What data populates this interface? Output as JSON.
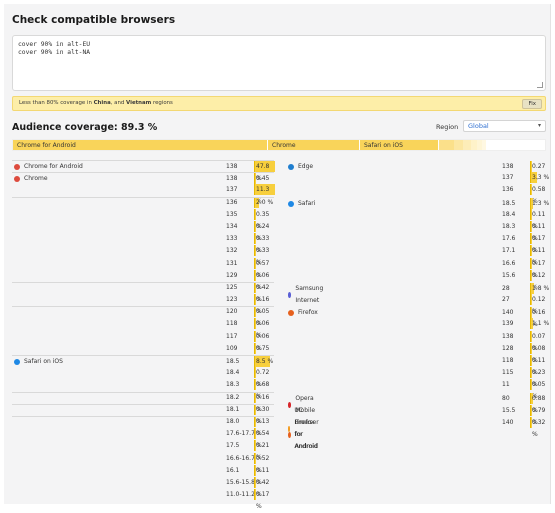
{
  "heading": "Check compatible browsers",
  "query": "cover 90% in alt-EU\ncover 90% in alt-NA",
  "warning": {
    "prefix": "Less than 80% coverage in ",
    "r1": "China",
    "mid": ", and ",
    "r2": "Vietnam",
    "suffix": " regions",
    "fix": "Fix"
  },
  "coverage_title": "Audience coverage: 89.3 %",
  "region": {
    "label": "Region",
    "value": "Global"
  },
  "bar_segments": [
    {
      "label": "Chrome for Android",
      "share": 47.8,
      "color": "#f9d45a"
    },
    {
      "label": "Chrome",
      "share": 16.7,
      "color": "#f9d45a"
    },
    {
      "label": "Safari on iOS",
      "share": 13.9,
      "color": "#f9d45a"
    },
    {
      "label": "",
      "share": 3.6,
      "color": "#fbe08a"
    },
    {
      "label": "",
      "share": 2.1,
      "color": "#fce7a3"
    },
    {
      "label": "",
      "share": 1.8,
      "color": "#fdedb8"
    },
    {
      "label": "",
      "share": 1.4,
      "color": "#fef2c9"
    },
    {
      "label": "",
      "share": 1.3,
      "color": "#fef5d6"
    },
    {
      "label": "",
      "share": 0.8,
      "color": "#fff8e2"
    }
  ],
  "left_rows": [
    {
      "browser": "Chrome for Android",
      "icon": "chrome",
      "version": "138",
      "pct": "47.8 %",
      "value": 47.8
    },
    {
      "browser": "Chrome",
      "icon": "chrome",
      "version": "138",
      "pct": "0.45 %",
      "value": 0.45
    },
    {
      "browser": "",
      "version": "137",
      "pct": "11.3 %",
      "value": 11.3
    },
    {
      "browser": "",
      "version": "136",
      "pct": "2.0 %",
      "value": 2.0
    },
    {
      "browser": "",
      "version": "135",
      "pct": "0.35 %",
      "value": 0.35
    },
    {
      "browser": "",
      "version": "134",
      "pct": "0.24 %",
      "value": 0.24
    },
    {
      "browser": "",
      "version": "133",
      "pct": "0.33 %",
      "value": 0.33
    },
    {
      "browser": "",
      "version": "132",
      "pct": "0.33 %",
      "value": 0.33
    },
    {
      "browser": "",
      "version": "131",
      "pct": "0.57 %",
      "value": 0.57
    },
    {
      "browser": "",
      "version": "129",
      "pct": "0.06 %",
      "value": 0.06
    },
    {
      "browser": "",
      "version": "125",
      "pct": "0.42 %",
      "value": 0.42
    },
    {
      "browser": "",
      "version": "123",
      "pct": "0.16 %",
      "value": 0.16
    },
    {
      "browser": "",
      "version": "120",
      "pct": "0.05 %",
      "value": 0.05
    },
    {
      "browser": "",
      "version": "118",
      "pct": "0.06 %",
      "value": 0.06
    },
    {
      "browser": "",
      "version": "117",
      "pct": "0.06 %",
      "value": 0.06
    },
    {
      "browser": "",
      "version": "109",
      "pct": "0.75 %",
      "value": 0.75
    },
    {
      "browser": "Safari on iOS",
      "icon": "safari",
      "version": "18.5",
      "pct": "8.5 %",
      "value": 8.5
    },
    {
      "browser": "",
      "version": "18.4",
      "pct": "0.72 %",
      "value": 0.72
    },
    {
      "browser": "",
      "version": "18.3",
      "pct": "0.68 %",
      "value": 0.68
    },
    {
      "browser": "",
      "version": "18.2",
      "pct": "0.16 %",
      "value": 0.16
    },
    {
      "browser": "",
      "version": "18.1",
      "pct": "0.30 %",
      "value": 0.3
    },
    {
      "browser": "",
      "version": "18.0",
      "pct": "0.13 %",
      "value": 0.13
    },
    {
      "browser": "",
      "version": "17.6-17.7",
      "pct": "0.54 %",
      "value": 0.54
    },
    {
      "browser": "",
      "version": "17.5",
      "pct": "0.21 %",
      "value": 0.21
    },
    {
      "browser": "",
      "version": "16.6-16.7",
      "pct": "0.52 %",
      "value": 0.52
    },
    {
      "browser": "",
      "version": "16.1",
      "pct": "0.11 %",
      "value": 0.11
    },
    {
      "browser": "",
      "version": "15.6-15.8",
      "pct": "0.42 %",
      "value": 0.42
    },
    {
      "browser": "",
      "version": "11.0-11.2",
      "pct": "0.17 %",
      "value": 0.17
    }
  ],
  "right_rows": [
    {
      "browser": "Edge",
      "icon": "edge",
      "version": "138",
      "pct": "0.27 %",
      "value": 0.27
    },
    {
      "browser": "",
      "version": "137",
      "pct": "3.3 %",
      "value": 3.3
    },
    {
      "browser": "",
      "version": "136",
      "pct": "0.58 %",
      "value": 0.58
    },
    {
      "browser": "Safari",
      "icon": "safari",
      "version": "18.5",
      "pct": "1.3 %",
      "value": 1.3
    },
    {
      "browser": "",
      "version": "18.4",
      "pct": "0.11 %",
      "value": 0.11
    },
    {
      "browser": "",
      "version": "18.3",
      "pct": "0.11 %",
      "value": 0.11
    },
    {
      "browser": "",
      "version": "17.6",
      "pct": "0.17 %",
      "value": 0.17
    },
    {
      "browser": "",
      "version": "17.1",
      "pct": "0.11 %",
      "value": 0.11
    },
    {
      "browser": "",
      "version": "16.6",
      "pct": "0.17 %",
      "value": 0.17
    },
    {
      "browser": "",
      "version": "15.6",
      "pct": "0.12 %",
      "value": 0.12
    },
    {
      "browser": "Samsung Internet",
      "icon": "samsung",
      "version": "28",
      "pct": "1.8 %",
      "value": 1.8
    },
    {
      "browser": "",
      "version": "27",
      "pct": "0.12 %",
      "value": 0.12
    },
    {
      "browser": "Firefox",
      "icon": "firefox",
      "version": "140",
      "pct": "0.16 %",
      "value": 0.16
    },
    {
      "browser": "",
      "version": "139",
      "pct": "1.1 %",
      "value": 1.1
    },
    {
      "browser": "",
      "version": "138",
      "pct": "0.07 %",
      "value": 0.07
    },
    {
      "browser": "",
      "version": "128",
      "pct": "0.08 %",
      "value": 0.08
    },
    {
      "browser": "",
      "version": "118",
      "pct": "0.11 %",
      "value": 0.11
    },
    {
      "browser": "",
      "version": "115",
      "pct": "0.23 %",
      "value": 0.23
    },
    {
      "browser": "",
      "version": "11",
      "pct": "0.05 %",
      "value": 0.05
    },
    {
      "browser": "Opera Mobile",
      "icon": "opera",
      "version": "80",
      "pct": "0.88 %",
      "value": 0.88
    },
    {
      "browser": "UC Browser for Android",
      "icon": "uc",
      "version": "15.5",
      "pct": "0.79 %",
      "value": 0.79
    },
    {
      "browser": "Firefox for Android",
      "icon": "firefox",
      "version": "140",
      "pct": "0.32 %",
      "value": 0.32
    }
  ],
  "icon_colors": {
    "chrome": "#dd4b3e",
    "safari": "#1e88e5",
    "edge": "#1f7ecf",
    "samsung": "#5a5fd6",
    "firefox": "#e6601d",
    "opera": "#d7262b",
    "uc": "#f39c21"
  }
}
